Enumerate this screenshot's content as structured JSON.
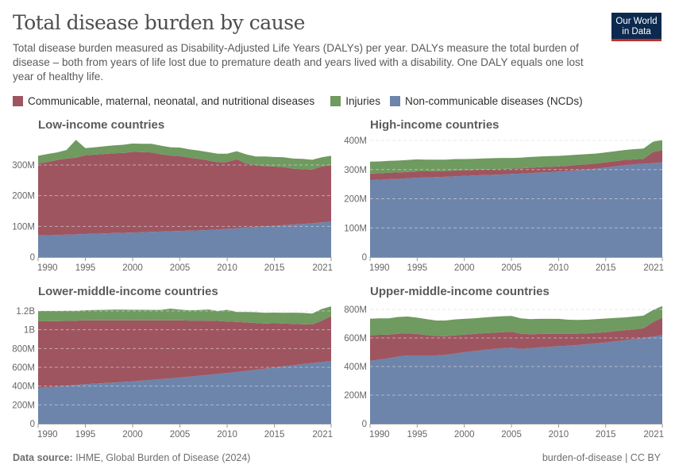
{
  "header": {
    "title": "Total disease burden by cause",
    "subtitle": "Total disease burden measured as Disability-Adjusted Life Years (DALYs) per year. DALYs measure the total burden of disease – both from years of life lost due to premature death and years lived with a disability. One DALY equals one lost year of healthy life.",
    "logo_line1": "Our World",
    "logo_line2": "in Data"
  },
  "legend": [
    {
      "label": "Communicable, maternal, neonatal, and nutritional diseases",
      "color": "#9e5560"
    },
    {
      "label": "Injuries",
      "color": "#6f9a60"
    },
    {
      "label": "Non-communicable diseases (NCDs)",
      "color": "#6d84ab"
    }
  ],
  "footer": {
    "source_label": "Data source:",
    "source_text": "IHME, Global Burden of Disease (2024)",
    "right_text": "burden-of-disease | CC BY"
  },
  "chart_data": [
    {
      "type": "area",
      "stacked": true,
      "title": "Low-income countries",
      "x": [
        1990,
        1991,
        1992,
        1993,
        1994,
        1995,
        1996,
        1997,
        1998,
        1999,
        2000,
        2001,
        2002,
        2003,
        2004,
        2005,
        2006,
        2007,
        2008,
        2009,
        2010,
        2011,
        2012,
        2013,
        2014,
        2015,
        2016,
        2017,
        2018,
        2019,
        2020,
        2021
      ],
      "xticks": [
        1990,
        1995,
        2000,
        2005,
        2010,
        2015,
        2021
      ],
      "yticks": [
        0,
        100,
        200,
        300
      ],
      "ytick_labels": [
        "0",
        "100M",
        "200M",
        "300M"
      ],
      "ylim": [
        0,
        390
      ],
      "unit": "million DALYs",
      "series": [
        {
          "name": "Non-communicable diseases (NCDs)",
          "values": [
            70,
            71,
            72,
            73,
            74,
            75,
            76,
            77,
            78,
            79,
            80,
            81,
            82,
            83,
            84,
            85,
            86,
            87,
            88,
            90,
            92,
            94,
            96,
            98,
            100,
            102,
            104,
            106,
            108,
            110,
            113,
            115
          ]
        },
        {
          "name": "Communicable, maternal, neonatal, and nutritional diseases",
          "values": [
            235,
            239,
            244,
            248,
            250,
            257,
            258,
            259,
            260,
            260,
            263,
            261,
            259,
            252,
            247,
            244,
            238,
            233,
            227,
            219,
            218,
            225,
            209,
            202,
            196,
            193,
            189,
            182,
            178,
            175,
            182,
            185
          ]
        },
        {
          "name": "Injuries",
          "values": [
            25,
            26,
            25,
            28,
            58,
            23,
            24,
            25,
            26,
            27,
            27,
            27,
            28,
            28,
            27,
            28,
            27,
            27,
            27,
            28,
            27,
            26,
            30,
            28,
            32,
            31,
            32,
            33,
            34,
            32,
            30,
            30
          ]
        }
      ]
    },
    {
      "type": "area",
      "stacked": true,
      "title": "High-income countries",
      "x": [
        1990,
        1991,
        1992,
        1993,
        1994,
        1995,
        1996,
        1997,
        1998,
        1999,
        2000,
        2001,
        2002,
        2003,
        2004,
        2005,
        2006,
        2007,
        2008,
        2009,
        2010,
        2011,
        2012,
        2013,
        2014,
        2015,
        2016,
        2017,
        2018,
        2019,
        2020,
        2021
      ],
      "xticks": [
        1990,
        1995,
        2000,
        2005,
        2010,
        2015,
        2021
      ],
      "yticks": [
        0,
        100,
        200,
        300,
        400
      ],
      "ytick_labels": [
        "0",
        "100M",
        "200M",
        "300M",
        "400M"
      ],
      "ylim": [
        0,
        400
      ],
      "unit": "million DALYs",
      "series": [
        {
          "name": "Non-communicable diseases (NCDs)",
          "values": [
            264,
            265,
            267,
            268,
            270,
            272,
            273,
            274,
            275,
            277,
            278,
            280,
            281,
            282,
            283,
            285,
            286,
            288,
            290,
            291,
            293,
            295,
            298,
            300,
            303,
            307,
            311,
            315,
            318,
            320,
            322,
            325
          ]
        },
        {
          "name": "Communicable, maternal, neonatal, and nutritional diseases",
          "values": [
            22,
            22,
            22,
            22,
            22,
            22,
            21,
            21,
            20,
            20,
            20,
            19,
            19,
            19,
            19,
            18,
            18,
            18,
            18,
            18,
            18,
            18,
            18,
            18,
            18,
            18,
            18,
            18,
            17,
            17,
            38,
            42
          ]
        },
        {
          "name": "Injuries",
          "values": [
            41,
            41,
            41,
            41,
            41,
            41,
            40,
            39,
            39,
            39,
            38,
            38,
            38,
            38,
            38,
            37,
            37,
            37,
            37,
            37,
            36,
            36,
            35,
            35,
            34,
            34,
            34,
            34,
            35,
            35,
            35,
            35
          ]
        }
      ]
    },
    {
      "type": "area",
      "stacked": true,
      "title": "Lower-middle-income countries",
      "x": [
        1990,
        1991,
        1992,
        1993,
        1994,
        1995,
        1996,
        1997,
        1998,
        1999,
        2000,
        2001,
        2002,
        2003,
        2004,
        2005,
        2006,
        2007,
        2008,
        2009,
        2010,
        2011,
        2012,
        2013,
        2014,
        2015,
        2016,
        2017,
        2018,
        2019,
        2020,
        2021
      ],
      "xticks": [
        1990,
        1995,
        2000,
        2005,
        2010,
        2015,
        2021
      ],
      "yticks": [
        0,
        200,
        400,
        600,
        800,
        1000,
        1200
      ],
      "ytick_labels": [
        "0",
        "200M",
        "400M",
        "600M",
        "800M",
        "1B",
        "1.2B"
      ],
      "ylim": [
        0,
        1250
      ],
      "unit": "million DALYs",
      "series": [
        {
          "name": "Non-communicable diseases (NCDs)",
          "values": [
            380,
            388,
            396,
            404,
            412,
            420,
            426,
            432,
            438,
            444,
            450,
            458,
            466,
            474,
            482,
            490,
            500,
            510,
            520,
            530,
            540,
            550,
            562,
            574,
            586,
            598,
            610,
            622,
            634,
            646,
            656,
            665
          ]
        },
        {
          "name": "Communicable, maternal, neonatal, and nutritional diseases",
          "values": [
            710,
            703,
            697,
            690,
            684,
            680,
            674,
            668,
            662,
            656,
            650,
            642,
            634,
            626,
            618,
            610,
            598,
            588,
            576,
            564,
            548,
            534,
            516,
            498,
            480,
            472,
            456,
            440,
            424,
            410,
            440,
            480
          ]
        },
        {
          "name": "Injuries",
          "values": [
            110,
            110,
            107,
            108,
            106,
            108,
            110,
            112,
            115,
            115,
            113,
            113,
            112,
            112,
            125,
            115,
            110,
            112,
            120,
            106,
            125,
            106,
            112,
            115,
            115,
            113,
            115,
            120,
            122,
            116,
            125,
            105
          ]
        }
      ]
    },
    {
      "type": "area",
      "stacked": true,
      "title": "Upper-middle-income countries",
      "x": [
        1990,
        1991,
        1992,
        1993,
        1994,
        1995,
        1996,
        1997,
        1998,
        1999,
        2000,
        2001,
        2002,
        2003,
        2004,
        2005,
        2006,
        2007,
        2008,
        2009,
        2010,
        2011,
        2012,
        2013,
        2014,
        2015,
        2016,
        2017,
        2018,
        2019,
        2020,
        2021
      ],
      "xticks": [
        1990,
        1995,
        2000,
        2005,
        2010,
        2015,
        2021
      ],
      "yticks": [
        0,
        200,
        400,
        600,
        800
      ],
      "ytick_labels": [
        "0",
        "200M",
        "400M",
        "600M",
        "800M"
      ],
      "ylim": [
        0,
        820
      ],
      "unit": "million DALYs",
      "series": [
        {
          "name": "Non-communicable diseases (NCDs)",
          "values": [
            440,
            448,
            458,
            470,
            478,
            478,
            478,
            478,
            482,
            490,
            500,
            508,
            515,
            522,
            528,
            532,
            524,
            528,
            534,
            538,
            542,
            546,
            550,
            556,
            562,
            568,
            576,
            584,
            592,
            600,
            610,
            620
          ]
        },
        {
          "name": "Communicable, maternal, neonatal, and nutritional diseases",
          "values": [
            180,
            174,
            166,
            160,
            154,
            150,
            142,
            136,
            130,
            128,
            124,
            120,
            118,
            114,
            112,
            112,
            105,
            98,
            94,
            92,
            88,
            84,
            80,
            76,
            74,
            72,
            72,
            70,
            68,
            68,
            100,
            122
          ]
        },
        {
          "name": "Injuries",
          "values": [
            115,
            116,
            114,
            117,
            118,
            114,
            112,
            108,
            110,
            112,
            110,
            110,
            110,
            112,
            112,
            110,
            108,
            106,
            106,
            104,
            104,
            98,
            96,
            96,
            96,
            96,
            92,
            90,
            90,
            88,
            85,
            82
          ]
        }
      ]
    }
  ]
}
